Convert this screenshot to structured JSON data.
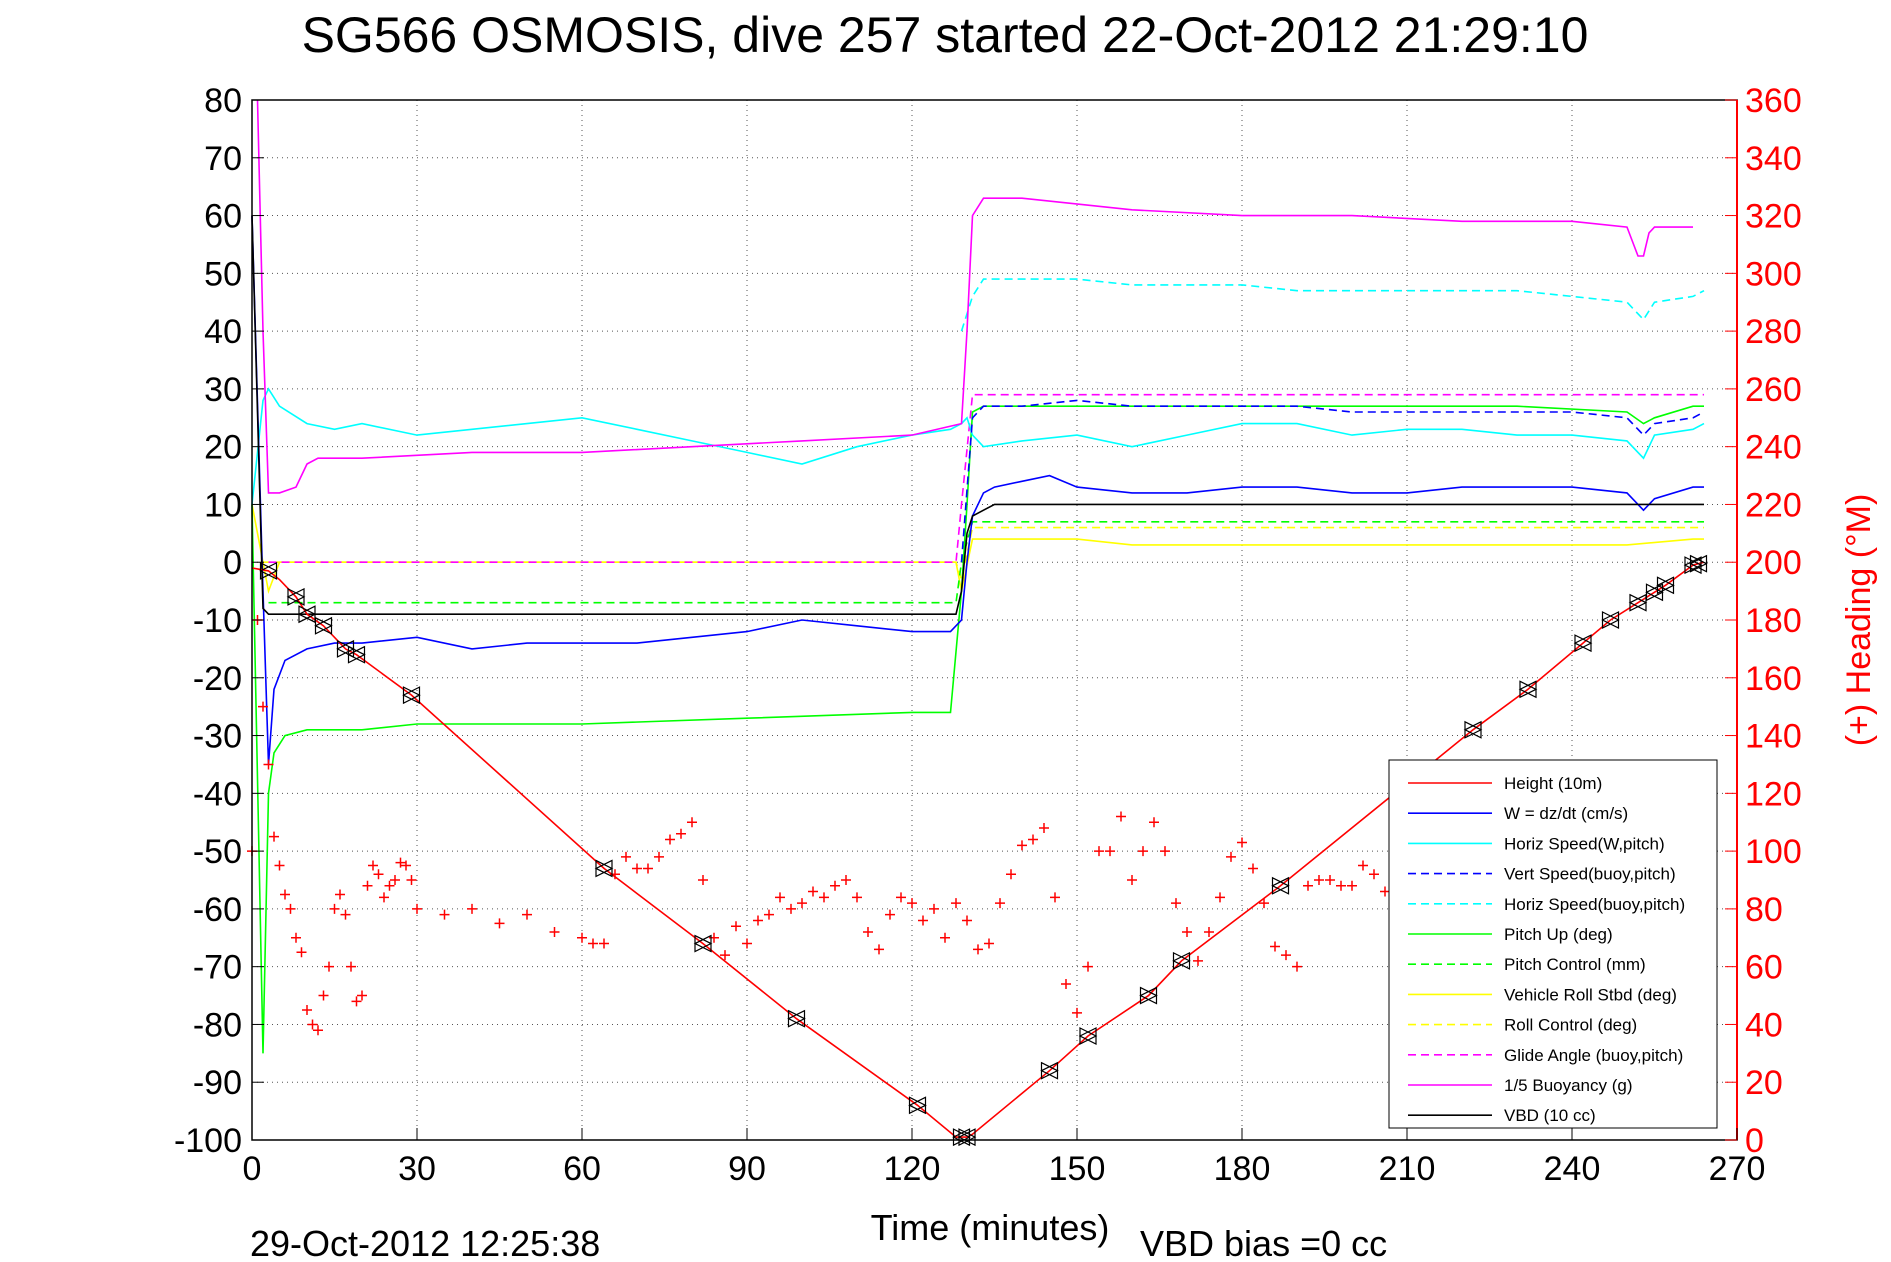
{
  "chart_data": {
    "type": "line",
    "title": "SG566 OSMOSIS, dive 257 started 22-Oct-2012 21:29:10",
    "xlabel": "Time (minutes)",
    "ylabel_right": "(+) Heading (°M)",
    "xlim": [
      0,
      270
    ],
    "ylim": [
      -100,
      80
    ],
    "y2lim": [
      0,
      360
    ],
    "xticks": [
      0,
      30,
      60,
      90,
      120,
      150,
      180,
      210,
      240,
      270
    ],
    "yticks": [
      80,
      70,
      60,
      50,
      40,
      30,
      20,
      10,
      0,
      -10,
      -20,
      -30,
      -40,
      -50,
      -60,
      -70,
      -80,
      -90,
      -100
    ],
    "y2ticks": [
      360,
      340,
      320,
      300,
      280,
      260,
      240,
      220,
      200,
      180,
      160,
      140,
      120,
      100,
      80,
      60,
      40,
      20,
      0
    ],
    "grid": true,
    "legend_position": "lower-right",
    "footer_date": "29-Oct-2012 12:25:38",
    "footer_bias": "VBD bias =0 cc",
    "colors": {
      "height": "#ff0000",
      "w": "#0000ff",
      "horiz_speed": "#00ffff",
      "vert_speed_buoy": "#0000ff",
      "horiz_speed_buoy": "#00ffff",
      "pitch": "#00ff00",
      "pitch_control": "#00ff00",
      "roll": "#ffff00",
      "roll_control": "#ffff00",
      "glide_angle": "#ff00ff",
      "buoyancy": "#ff00ff",
      "vbd": "#000000",
      "heading": "#ff0000",
      "right_axis": "#ff0000"
    },
    "series": [
      {
        "name": "Height (10m)",
        "key": "height",
        "dash": false,
        "x": [
          0,
          3,
          5,
          8,
          10,
          13,
          17,
          19,
          29,
          64,
          82,
          99,
          121,
          128,
          130,
          131,
          145,
          152,
          163,
          169,
          187,
          222,
          232,
          242,
          247,
          252,
          257,
          262,
          264
        ],
        "y": [
          -1,
          -1.5,
          -3,
          -6,
          -9,
          -11,
          -15,
          -16,
          -23,
          -53,
          -66,
          -79,
          -94,
          -99.5,
          -99.5,
          -99,
          -88,
          -82,
          -75,
          -69,
          -56,
          -29,
          -22,
          -14,
          -10,
          -7,
          -4,
          -0.5,
          0
        ]
      },
      {
        "name": "W = dz/dt (cm/s)",
        "key": "w",
        "dash": false,
        "x": [
          0,
          2,
          3,
          4,
          6,
          10,
          15,
          20,
          30,
          40,
          50,
          60,
          70,
          80,
          90,
          100,
          110,
          120,
          127,
          129,
          130,
          131,
          133,
          135,
          140,
          145,
          150,
          160,
          170,
          180,
          190,
          200,
          210,
          220,
          230,
          240,
          250,
          253,
          255,
          262,
          264
        ],
        "y": [
          60,
          -5,
          -35,
          -22,
          -17,
          -15,
          -14,
          -14,
          -13,
          -15,
          -14,
          -14,
          -14,
          -13,
          -12,
          -10,
          -11,
          -12,
          -12,
          -10,
          0,
          8,
          12,
          13,
          14,
          15,
          13,
          12,
          12,
          13,
          13,
          12,
          12,
          13,
          13,
          13,
          12,
          9,
          11,
          13,
          13
        ]
      },
      {
        "name": "Horiz Speed(W,pitch)",
        "key": "horiz_speed",
        "dash": false,
        "x": [
          0,
          2,
          3,
          5,
          10,
          15,
          20,
          30,
          40,
          50,
          60,
          70,
          80,
          90,
          100,
          110,
          120,
          127,
          129,
          130,
          131,
          133,
          140,
          150,
          160,
          170,
          180,
          190,
          200,
          210,
          220,
          230,
          240,
          250,
          253,
          255,
          262,
          264
        ],
        "y": [
          10,
          28,
          30,
          27,
          24,
          23,
          24,
          22,
          23,
          24,
          25,
          23,
          21,
          19,
          17,
          20,
          22,
          23,
          24,
          25,
          22,
          20,
          21,
          22,
          20,
          22,
          24,
          24,
          22,
          23,
          23,
          22,
          22,
          21,
          18,
          22,
          23,
          24
        ]
      },
      {
        "name": "Vert Speed(buoy,pitch)",
        "key": "vert_speed_buoy",
        "dash": true,
        "x": [
          129,
          131,
          133,
          140,
          150,
          160,
          170,
          180,
          190,
          200,
          210,
          220,
          230,
          240,
          250,
          253,
          255,
          262,
          264
        ],
        "y": [
          0,
          25,
          27,
          27,
          28,
          27,
          27,
          27,
          27,
          26,
          26,
          26,
          26,
          26,
          25,
          22,
          24,
          25,
          26
        ]
      },
      {
        "name": "Horiz Speed(buoy,pitch)",
        "key": "horiz_speed_buoy",
        "dash": true,
        "x": [
          129,
          131,
          133,
          140,
          150,
          160,
          170,
          180,
          190,
          200,
          210,
          220,
          230,
          240,
          250,
          253,
          255,
          262,
          264
        ],
        "y": [
          40,
          46,
          49,
          49,
          49,
          48,
          48,
          48,
          47,
          47,
          47,
          47,
          47,
          46,
          45,
          42,
          45,
          46,
          47
        ]
      },
      {
        "name": "Pitch Up (deg)",
        "key": "pitch",
        "dash": false,
        "x": [
          0,
          2,
          3,
          4,
          6,
          10,
          20,
          30,
          60,
          90,
          120,
          127,
          129,
          130,
          131,
          133,
          140,
          150,
          170,
          200,
          230,
          250,
          253,
          255,
          262,
          264
        ],
        "y": [
          10,
          -85,
          -40,
          -33,
          -30,
          -29,
          -29,
          -28,
          -28,
          -27,
          -26,
          -26,
          -5,
          10,
          26,
          27,
          27,
          27,
          27,
          27,
          27,
          26,
          24,
          25,
          27,
          27
        ]
      },
      {
        "name": "Pitch Control (mm)",
        "key": "pitch_control",
        "dash": true,
        "x": [
          3,
          128,
          129,
          131,
          264
        ],
        "y": [
          -7,
          -7,
          0,
          7,
          7
        ]
      },
      {
        "name": "Vehicle Roll Stbd (deg)",
        "key": "roll",
        "dash": false,
        "x": [
          0,
          3,
          5,
          10,
          20,
          30,
          60,
          90,
          120,
          128,
          129,
          131,
          140,
          150,
          160,
          170,
          190,
          210,
          230,
          250,
          262,
          264
        ],
        "y": [
          10,
          -5,
          0,
          0,
          0,
          0,
          0,
          0,
          0,
          0,
          -5,
          4,
          4,
          4,
          3,
          3,
          3,
          3,
          3,
          3,
          4,
          4
        ]
      },
      {
        "name": "Roll Control (deg)",
        "key": "roll_control",
        "dash": true,
        "x": [
          2,
          128,
          129,
          131,
          264
        ],
        "y": [
          0,
          0,
          -3,
          6,
          6
        ]
      },
      {
        "name": "Glide Angle (buoy,pitch)",
        "key": "glide_angle",
        "dash": true,
        "x": [
          3,
          128,
          129,
          131,
          264
        ],
        "y": [
          0,
          0,
          10,
          29,
          29
        ]
      },
      {
        "name": "1/5 Buoyancy (g)",
        "key": "buoyancy",
        "dash": false,
        "x": [
          1,
          2,
          3,
          5,
          8,
          10,
          12,
          20,
          40,
          60,
          80,
          100,
          120,
          129,
          130,
          131,
          133,
          140,
          160,
          180,
          200,
          220,
          240,
          250,
          252,
          253,
          254,
          255,
          262
        ],
        "y": [
          80,
          40,
          12,
          12,
          13,
          17,
          18,
          18,
          19,
          19,
          20,
          21,
          22,
          24,
          40,
          60,
          63,
          63,
          61,
          60,
          60,
          59,
          59,
          58,
          53,
          53,
          57,
          58,
          58
        ]
      },
      {
        "name": "VBD (10 cc)",
        "key": "vbd",
        "dash": false,
        "x": [
          0,
          2,
          3,
          128,
          129,
          130,
          131,
          133,
          135,
          140,
          150,
          170,
          200,
          230,
          262,
          264
        ],
        "y": [
          60,
          -8,
          -9,
          -9,
          -5,
          5,
          8,
          9,
          10,
          10,
          10,
          10,
          10,
          10,
          10,
          10
        ]
      }
    ],
    "heading": {
      "name": "Heading",
      "x": [
        0,
        1,
        2,
        3,
        4,
        5,
        6,
        7,
        8,
        9,
        10,
        11,
        12,
        13,
        14,
        15,
        16,
        17,
        18,
        19,
        20,
        21,
        22,
        23,
        24,
        25,
        26,
        27,
        28,
        29,
        30,
        35,
        40,
        45,
        50,
        55,
        60,
        62,
        64,
        66,
        68,
        70,
        72,
        74,
        76,
        78,
        80,
        82,
        84,
        86,
        88,
        90,
        92,
        94,
        96,
        98,
        100,
        102,
        104,
        106,
        108,
        110,
        112,
        114,
        116,
        118,
        120,
        122,
        124,
        126,
        128,
        130,
        132,
        134,
        136,
        138,
        140,
        142,
        144,
        146,
        148,
        150,
        152,
        154,
        156,
        158,
        160,
        162,
        164,
        166,
        168,
        170,
        172,
        174,
        176,
        178,
        180,
        182,
        184,
        186,
        188,
        190,
        192,
        194,
        196,
        198,
        200,
        202,
        204,
        206,
        208,
        210
      ],
      "y": [
        100,
        180,
        150,
        130,
        105,
        95,
        85,
        80,
        70,
        65,
        45,
        40,
        38,
        50,
        60,
        80,
        85,
        78,
        60,
        48,
        50,
        88,
        95,
        92,
        84,
        88,
        90,
        96,
        95,
        90,
        80,
        78,
        80,
        75,
        78,
        72,
        70,
        68,
        68,
        92,
        98,
        94,
        94,
        98,
        104,
        106,
        110,
        90,
        70,
        64,
        74,
        68,
        76,
        78,
        84,
        80,
        82,
        86,
        84,
        88,
        90,
        84,
        72,
        66,
        78,
        84,
        82,
        76,
        80,
        70,
        82,
        76,
        66,
        68,
        82,
        92,
        102,
        104,
        108,
        84,
        54,
        44,
        60,
        100,
        100,
        112,
        90,
        100,
        110,
        100,
        82,
        72,
        62,
        72,
        84,
        98,
        103,
        94,
        82,
        67,
        64,
        60,
        88,
        90,
        90,
        88,
        88,
        95,
        92,
        86,
        82,
        84
      ]
    },
    "legend": [
      "Height (10m)",
      "W = dz/dt (cm/s)",
      "Horiz Speed(W,pitch)",
      "Vert Speed(buoy,pitch)",
      "Horiz Speed(buoy,pitch)",
      "Pitch Up (deg)",
      "Pitch Control (mm)",
      "Vehicle Roll Stbd (deg)",
      "Roll Control (deg)",
      "Glide Angle (buoy,pitch)",
      "1/5 Buoyancy (g)",
      "VBD (10 cc)"
    ]
  }
}
